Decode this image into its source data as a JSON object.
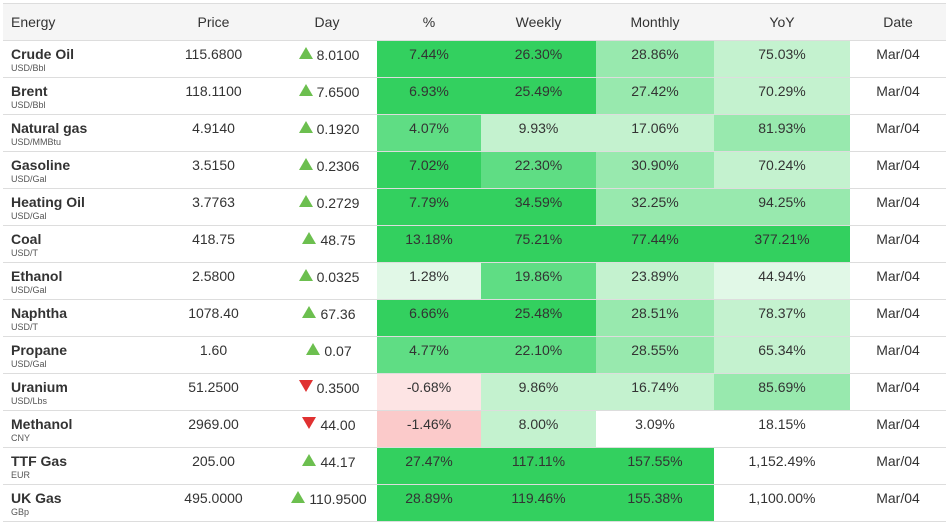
{
  "headers": {
    "energy": "Energy",
    "price": "Price",
    "day": "Day",
    "pct": "%",
    "weekly": "Weekly",
    "monthly": "Monthly",
    "yoy": "YoY",
    "date": "Date"
  },
  "colors": {
    "strong_green": "#33d05f",
    "mid_green": "#5fdd84",
    "light_green": "#98e9ae",
    "pale_green": "#c4f2cf",
    "faint_green": "#e1f8e7",
    "faint_red": "#fde4e4",
    "light_red": "#fbcaca",
    "white": "#ffffff",
    "up_arrow": "#6cbf4f",
    "down_arrow": "#e03131"
  },
  "rows": [
    {
      "name": "Crude Oil",
      "unit": "USD/Bbl",
      "price": "115.6800",
      "dir": "up",
      "day": "8.0100",
      "pct": "7.44%",
      "weekly": "26.30%",
      "monthly": "28.86%",
      "yoy": "75.03%",
      "date": "Mar/04",
      "bg": [
        "strong_green",
        "strong_green",
        "light_green",
        "pale_green"
      ]
    },
    {
      "name": "Brent",
      "unit": "USD/Bbl",
      "price": "118.1100",
      "dir": "up",
      "day": "7.6500",
      "pct": "6.93%",
      "weekly": "25.49%",
      "monthly": "27.42%",
      "yoy": "70.29%",
      "date": "Mar/04",
      "bg": [
        "strong_green",
        "strong_green",
        "light_green",
        "pale_green"
      ]
    },
    {
      "name": "Natural gas",
      "unit": "USD/MMBtu",
      "price": "4.9140",
      "dir": "up",
      "day": "0.1920",
      "pct": "4.07%",
      "weekly": "9.93%",
      "monthly": "17.06%",
      "yoy": "81.93%",
      "date": "Mar/04",
      "bg": [
        "mid_green",
        "pale_green",
        "pale_green",
        "light_green"
      ]
    },
    {
      "name": "Gasoline",
      "unit": "USD/Gal",
      "price": "3.5150",
      "dir": "up",
      "day": "0.2306",
      "pct": "7.02%",
      "weekly": "22.30%",
      "monthly": "30.90%",
      "yoy": "70.24%",
      "date": "Mar/04",
      "bg": [
        "strong_green",
        "mid_green",
        "light_green",
        "pale_green"
      ]
    },
    {
      "name": "Heating Oil",
      "unit": "USD/Gal",
      "price": "3.7763",
      "dir": "up",
      "day": "0.2729",
      "pct": "7.79%",
      "weekly": "34.59%",
      "monthly": "32.25%",
      "yoy": "94.25%",
      "date": "Mar/04",
      "bg": [
        "strong_green",
        "strong_green",
        "light_green",
        "light_green"
      ]
    },
    {
      "name": "Coal",
      "unit": "USD/T",
      "price": "418.75",
      "dir": "up",
      "day": "48.75",
      "pct": "13.18%",
      "weekly": "75.21%",
      "monthly": "77.44%",
      "yoy": "377.21%",
      "date": "Mar/04",
      "bg": [
        "strong_green",
        "strong_green",
        "strong_green",
        "strong_green"
      ]
    },
    {
      "name": "Ethanol",
      "unit": "USD/Gal",
      "price": "2.5800",
      "dir": "up",
      "day": "0.0325",
      "pct": "1.28%",
      "weekly": "19.86%",
      "monthly": "23.89%",
      "yoy": "44.94%",
      "date": "Mar/04",
      "bg": [
        "faint_green",
        "mid_green",
        "pale_green",
        "faint_green"
      ]
    },
    {
      "name": "Naphtha",
      "unit": "USD/T",
      "price": "1078.40",
      "dir": "up",
      "day": "67.36",
      "pct": "6.66%",
      "weekly": "25.48%",
      "monthly": "28.51%",
      "yoy": "78.37%",
      "date": "Mar/04",
      "bg": [
        "strong_green",
        "strong_green",
        "light_green",
        "pale_green"
      ]
    },
    {
      "name": "Propane",
      "unit": "USD/Gal",
      "price": "1.60",
      "dir": "up",
      "day": "0.07",
      "pct": "4.77%",
      "weekly": "22.10%",
      "monthly": "28.55%",
      "yoy": "65.34%",
      "date": "Mar/04",
      "bg": [
        "mid_green",
        "mid_green",
        "light_green",
        "pale_green"
      ]
    },
    {
      "name": "Uranium",
      "unit": "USD/Lbs",
      "price": "51.2500",
      "dir": "down",
      "day": "0.3500",
      "pct": "-0.68%",
      "weekly": "9.86%",
      "monthly": "16.74%",
      "yoy": "85.69%",
      "date": "Mar/04",
      "bg": [
        "faint_red",
        "pale_green",
        "pale_green",
        "light_green"
      ]
    },
    {
      "name": "Methanol",
      "unit": "CNY",
      "price": "2969.00",
      "dir": "down",
      "day": "44.00",
      "pct": "-1.46%",
      "weekly": "8.00%",
      "monthly": "3.09%",
      "yoy": "18.15%",
      "date": "Mar/04",
      "bg": [
        "light_red",
        "pale_green",
        "white",
        "white"
      ]
    },
    {
      "name": "TTF Gas",
      "unit": "EUR",
      "price": "205.00",
      "dir": "up",
      "day": "44.17",
      "pct": "27.47%",
      "weekly": "117.11%",
      "monthly": "157.55%",
      "yoy": "1,152.49%",
      "date": "Mar/04",
      "bg": [
        "strong_green",
        "strong_green",
        "strong_green",
        "white"
      ]
    },
    {
      "name": "UK Gas",
      "unit": "GBp",
      "price": "495.0000",
      "dir": "up",
      "day": "110.9500",
      "pct": "28.89%",
      "weekly": "119.46%",
      "monthly": "155.38%",
      "yoy": "1,100.00%",
      "date": "Mar/04",
      "bg": [
        "strong_green",
        "strong_green",
        "strong_green",
        "white"
      ]
    }
  ]
}
